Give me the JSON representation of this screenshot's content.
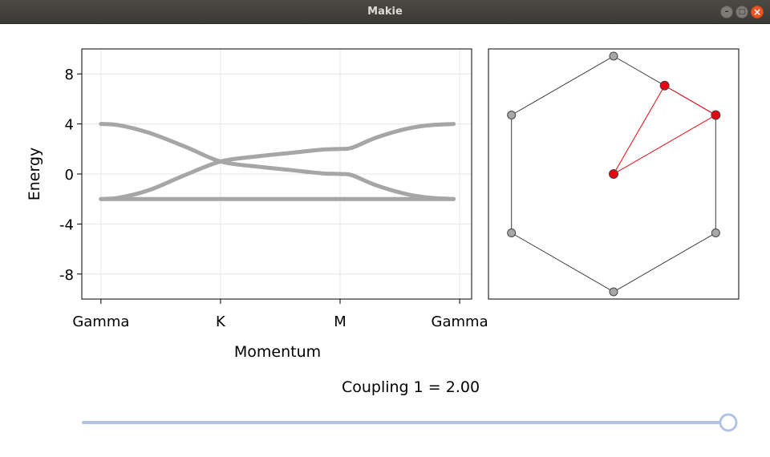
{
  "window": {
    "title": "Makie"
  },
  "chart_data": [
    {
      "type": "line",
      "xlabel": "Momentum",
      "ylabel": "Energy",
      "ylim": [
        -10,
        10
      ],
      "yticks": [
        8,
        4,
        0,
        -4,
        -8
      ],
      "ytick_labels": [
        "8",
        "4",
        "0",
        "-4",
        "-8"
      ],
      "xticks": [
        0,
        1,
        2,
        3
      ],
      "xtick_labels": [
        "Gamma",
        "K",
        "M",
        "Gamma"
      ],
      "xlim": [
        -0.16,
        3.1
      ],
      "grid": "on",
      "series": [
        {
          "color": "#a6a6a6",
          "points": [
            [
              0,
              4
            ],
            [
              0.15,
              3.9
            ],
            [
              0.4,
              3.3
            ],
            [
              0.7,
              2.2
            ],
            [
              1,
              1
            ],
            [
              1.3,
              0.6
            ],
            [
              1.6,
              0.3
            ],
            [
              1.85,
              0.05
            ],
            [
              2,
              0
            ],
            [
              2.1,
              -0.1
            ],
            [
              2.3,
              -0.9
            ],
            [
              2.55,
              -1.6
            ],
            [
              2.75,
              -1.9
            ],
            [
              2.95,
              -2
            ]
          ]
        },
        {
          "color": "#a6a6a6",
          "points": [
            [
              0,
              -2
            ],
            [
              0.15,
              -1.9
            ],
            [
              0.4,
              -1.3
            ],
            [
              0.7,
              -0.1
            ],
            [
              1,
              1
            ],
            [
              1.3,
              1.4
            ],
            [
              1.6,
              1.7
            ],
            [
              1.85,
              1.95
            ],
            [
              2,
              2
            ],
            [
              2.1,
              2.1
            ],
            [
              2.3,
              2.9
            ],
            [
              2.55,
              3.6
            ],
            [
              2.75,
              3.9
            ],
            [
              2.95,
              4
            ]
          ]
        },
        {
          "color": "#a6a6a6",
          "points": [
            [
              0,
              -2
            ],
            [
              2.95,
              -2
            ]
          ]
        }
      ]
    },
    {
      "type": "scatter",
      "hexagon_vertices": [
        [
          0,
          1
        ],
        [
          0.866,
          0.5
        ],
        [
          0.866,
          -0.5
        ],
        [
          0,
          -1
        ],
        [
          -0.866,
          -0.5
        ],
        [
          -0.866,
          0.5
        ]
      ],
      "highlighted_points": [
        [
          0,
          0
        ],
        [
          0.433,
          0.75
        ],
        [
          0.866,
          0.5
        ]
      ],
      "edge_color": "#3a3a3a",
      "point_color": "#a6a6a6",
      "highlight_color": "#e30613"
    }
  ],
  "slider": {
    "label": "Coupling 1 = 2.00",
    "value_fraction": 1.0,
    "track_color": "#b3c3e6",
    "handle_color": "#b3c3e6"
  }
}
